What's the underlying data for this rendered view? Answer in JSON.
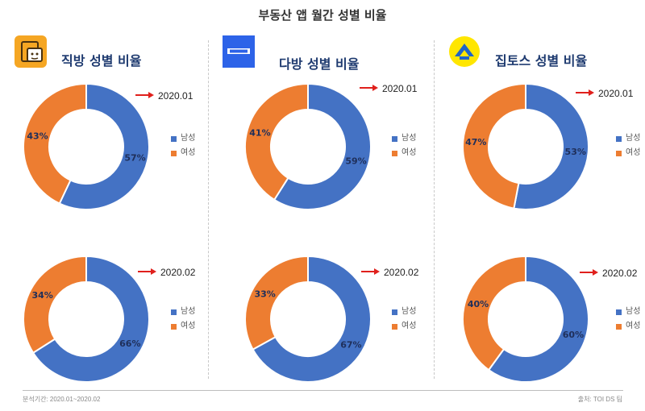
{
  "title": "부동산 앱 월간 성별 비율",
  "colors": {
    "male": "#4472c4",
    "female": "#ed7d31",
    "arrow": "#e0201c"
  },
  "footer": {
    "left": "분석기간: 2020.01~2020.02",
    "right": "출처: TOI DS 팀"
  },
  "chart_data": [
    {
      "type": "pie",
      "app": "직방 성별 비율",
      "period": "2020.01",
      "categories": [
        "남성",
        "여성"
      ],
      "values": [
        57,
        43
      ],
      "labels": [
        "57%",
        "43%"
      ]
    },
    {
      "type": "pie",
      "app": "직방 성별 비율",
      "period": "2020.02",
      "categories": [
        "남성",
        "여성"
      ],
      "values": [
        66,
        34
      ],
      "labels": [
        "66%",
        "34%"
      ]
    },
    {
      "type": "pie",
      "app": "다방 성별 비율",
      "period": "2020.01",
      "categories": [
        "남성",
        "여성"
      ],
      "values": [
        59,
        41
      ],
      "labels": [
        "59%",
        "41%"
      ]
    },
    {
      "type": "pie",
      "app": "다방 성별 비율",
      "period": "2020.02",
      "categories": [
        "남성",
        "여성"
      ],
      "values": [
        67,
        33
      ],
      "labels": [
        "67%",
        "33%"
      ]
    },
    {
      "type": "pie",
      "app": "집토스 성별 비율",
      "period": "2020.01",
      "categories": [
        "남성",
        "여성"
      ],
      "values": [
        53,
        47
      ],
      "labels": [
        "53%",
        "47%"
      ]
    },
    {
      "type": "pie",
      "app": "집토스 성별 비율",
      "period": "2020.02",
      "categories": [
        "남성",
        "여성"
      ],
      "values": [
        60,
        40
      ],
      "labels": [
        "60%",
        "40%"
      ]
    }
  ]
}
